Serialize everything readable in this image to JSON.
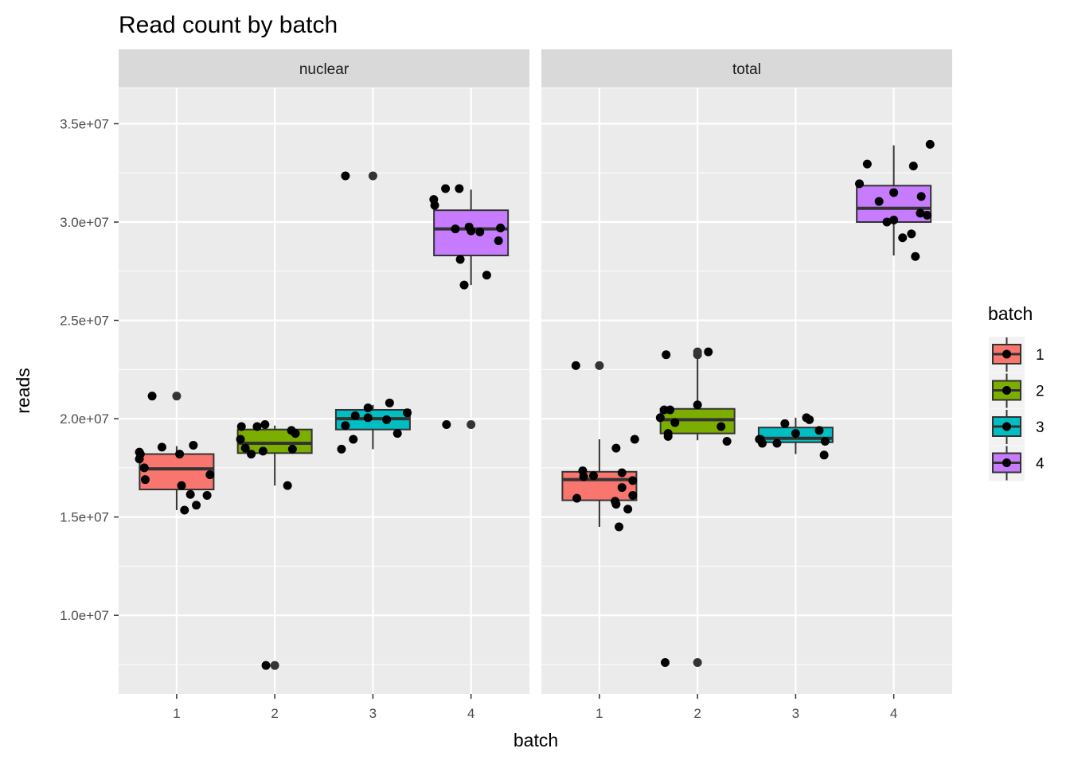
{
  "chart_data": {
    "type": "boxplot",
    "title": "Read count by batch",
    "xlabel": "batch",
    "ylabel": "reads",
    "categories": [
      "1",
      "2",
      "3",
      "4"
    ],
    "ylim": [
      6000000,
      36800000
    ],
    "yticks": [
      10000000,
      15000000,
      20000000,
      25000000,
      30000000,
      35000000
    ],
    "ytick_labels": [
      "1.0e+07",
      "1.5e+07",
      "2.0e+07",
      "2.5e+07",
      "3.0e+07",
      "3.5e+07"
    ],
    "grid": true,
    "legend": {
      "title": "batch",
      "position": "right",
      "entries": [
        {
          "label": "1",
          "color": "#F8766D"
        },
        {
          "label": "2",
          "color": "#7CAE00"
        },
        {
          "label": "3",
          "color": "#00BFC4"
        },
        {
          "label": "4",
          "color": "#C77CFF"
        }
      ]
    },
    "panels": [
      {
        "facet": "nuclear",
        "boxes": [
          {
            "batch": "1",
            "whisker_low": 15350000,
            "q1": 16400000,
            "median": 17450000,
            "q3": 18200000,
            "whisker_high": 18600000,
            "outliers": [
              21150000
            ],
            "points": [
              [
                -0.38,
                18300000
              ],
              [
                -0.38,
                17950000
              ],
              [
                -0.33,
                17500000
              ],
              [
                -0.32,
                16900000
              ],
              [
                -0.37,
                18200000
              ],
              [
                -0.25,
                21150000
              ],
              [
                -0.15,
                18550000
              ],
              [
                0.03,
                18200000
              ],
              [
                0.05,
                16600000
              ],
              [
                0.08,
                15350000
              ],
              [
                0.14,
                16150000
              ],
              [
                0.17,
                18650000
              ],
              [
                0.2,
                15600000
              ],
              [
                0.31,
                16100000
              ],
              [
                0.34,
                17150000
              ]
            ]
          },
          {
            "batch": "2",
            "whisker_low": 16600000,
            "q1": 18250000,
            "median": 18750000,
            "q3": 19450000,
            "whisker_high": 19650000,
            "outliers": [
              7450000
            ],
            "points": [
              [
                -0.35,
                18950000
              ],
              [
                -0.34,
                19600000
              ],
              [
                -0.3,
                18500000
              ],
              [
                -0.24,
                18200000
              ],
              [
                -0.18,
                19600000
              ],
              [
                -0.1,
                19700000
              ],
              [
                -0.12,
                18350000
              ],
              [
                -0.09,
                7450000
              ],
              [
                0.13,
                16600000
              ],
              [
                0.18,
                18450000
              ],
              [
                0.17,
                19400000
              ],
              [
                0.21,
                19250000
              ]
            ]
          },
          {
            "batch": "3",
            "whisker_low": 18450000,
            "q1": 19450000,
            "median": 20000000,
            "q3": 20450000,
            "whisker_high": 20700000,
            "outliers": [
              32350000
            ],
            "points": [
              [
                -0.32,
                18450000
              ],
              [
                -0.28,
                19650000
              ],
              [
                -0.28,
                32350000
              ],
              [
                -0.2,
                18950000
              ],
              [
                -0.18,
                20150000
              ],
              [
                -0.05,
                20550000
              ],
              [
                -0.05,
                20050000
              ],
              [
                0.14,
                19950000
              ],
              [
                0.17,
                20800000
              ],
              [
                0.25,
                19250000
              ],
              [
                0.35,
                20300000
              ]
            ]
          },
          {
            "batch": "4",
            "whisker_low": 26800000,
            "q1": 28300000,
            "median": 29650000,
            "q3": 30600000,
            "whisker_high": 31650000,
            "outliers": [
              19700000
            ],
            "points": [
              [
                -0.38,
                31150000
              ],
              [
                -0.37,
                30850000
              ],
              [
                -0.26,
                31700000
              ],
              [
                -0.25,
                19700000
              ],
              [
                -0.16,
                29650000
              ],
              [
                -0.12,
                31700000
              ],
              [
                -0.11,
                28100000
              ],
              [
                -0.07,
                26800000
              ],
              [
                -0.02,
                29750000
              ],
              [
                0.0,
                29550000
              ],
              [
                0.09,
                29500000
              ],
              [
                0.16,
                27300000
              ],
              [
                0.28,
                29050000
              ],
              [
                0.3,
                29700000
              ]
            ]
          }
        ]
      },
      {
        "facet": "total",
        "boxes": [
          {
            "batch": "1",
            "whisker_low": 14500000,
            "q1": 15850000,
            "median": 16900000,
            "q3": 17300000,
            "whisker_high": 18950000,
            "outliers": [
              22700000
            ],
            "points": [
              [
                -0.24,
                22700000
              ],
              [
                -0.23,
                15950000
              ],
              [
                -0.17,
                17350000
              ],
              [
                -0.16,
                17050000
              ],
              [
                -0.06,
                17100000
              ],
              [
                0.16,
                15800000
              ],
              [
                0.17,
                18500000
              ],
              [
                0.17,
                15650000
              ],
              [
                0.2,
                14500000
              ],
              [
                0.23,
                16500000
              ],
              [
                0.23,
                17250000
              ],
              [
                0.29,
                15400000
              ],
              [
                0.34,
                16850000
              ],
              [
                0.34,
                16100000
              ],
              [
                0.36,
                18950000
              ]
            ]
          },
          {
            "batch": "2",
            "whisker_low": 18900000,
            "q1": 19250000,
            "median": 19950000,
            "q3": 20500000,
            "whisker_high": 23250000,
            "outliers": [
              7600000,
              23250000,
              23400000
            ],
            "points": [
              [
                -0.38,
                20050000
              ],
              [
                -0.34,
                20450000
              ],
              [
                -0.33,
                7600000
              ],
              [
                -0.32,
                23250000
              ],
              [
                -0.3,
                19250000
              ],
              [
                -0.3,
                19100000
              ],
              [
                -0.28,
                20450000
              ],
              [
                -0.23,
                19800000
              ],
              [
                0.0,
                20700000
              ],
              [
                0.11,
                23400000
              ],
              [
                0.24,
                19600000
              ],
              [
                0.3,
                18850000
              ]
            ]
          },
          {
            "batch": "3",
            "whisker_low": 18200000,
            "q1": 18800000,
            "median": 19000000,
            "q3": 19550000,
            "whisker_high": 20050000,
            "outliers": [],
            "points": [
              [
                -0.37,
                18950000
              ],
              [
                -0.36,
                18950000
              ],
              [
                -0.34,
                18750000
              ],
              [
                -0.19,
                18750000
              ],
              [
                -0.11,
                19750000
              ],
              [
                0.0,
                19250000
              ],
              [
                0.11,
                20050000
              ],
              [
                0.14,
                19950000
              ],
              [
                0.24,
                19400000
              ],
              [
                0.29,
                18150000
              ],
              [
                0.3,
                18850000
              ]
            ]
          },
          {
            "batch": "4",
            "whisker_low": 28300000,
            "q1": 30000000,
            "median": 30700000,
            "q3": 31850000,
            "whisker_high": 33900000,
            "outliers": [],
            "points": [
              [
                -0.35,
                31950000
              ],
              [
                -0.27,
                32950000
              ],
              [
                -0.15,
                31050000
              ],
              [
                -0.07,
                30000000
              ],
              [
                0.0,
                30100000
              ],
              [
                0.0,
                31500000
              ],
              [
                0.09,
                29200000
              ],
              [
                0.18,
                29400000
              ],
              [
                0.2,
                32850000
              ],
              [
                0.27,
                30450000
              ],
              [
                0.28,
                31300000
              ],
              [
                0.34,
                30350000
              ],
              [
                0.22,
                28250000
              ],
              [
                0.37,
                33950000
              ]
            ]
          }
        ]
      }
    ]
  }
}
